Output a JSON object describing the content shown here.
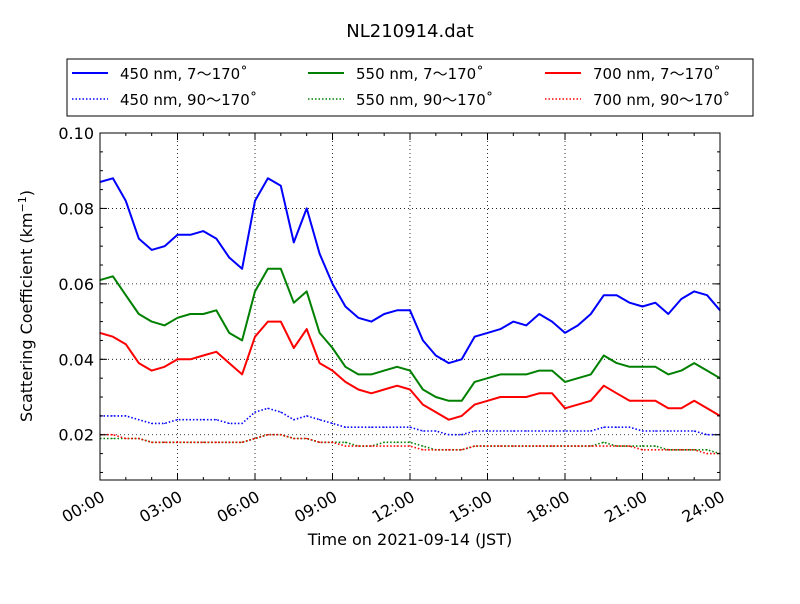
{
  "chart_data": {
    "type": "line",
    "title": "NL210914.dat",
    "xlabel": "Time on 2021-09-14 (JST)",
    "ylabel": "Scattering Coefficient (km",
    "ylabel_sup": "−1",
    "ylabel_tail": ")",
    "xlim": [
      0,
      24
    ],
    "ylim": [
      0.008,
      0.1
    ],
    "x_ticks": [
      {
        "v": 0,
        "label": "00:00"
      },
      {
        "v": 3,
        "label": "03:00"
      },
      {
        "v": 6,
        "label": "06:00"
      },
      {
        "v": 9,
        "label": "09:00"
      },
      {
        "v": 12,
        "label": "12:00"
      },
      {
        "v": 15,
        "label": "15:00"
      },
      {
        "v": 18,
        "label": "18:00"
      },
      {
        "v": 21,
        "label": "21:00"
      },
      {
        "v": 24,
        "label": "24:00"
      }
    ],
    "y_ticks": [
      {
        "v": 0.02,
        "label": "0.02"
      },
      {
        "v": 0.04,
        "label": "0.04"
      },
      {
        "v": 0.06,
        "label": "0.06"
      },
      {
        "v": 0.08,
        "label": "0.08"
      },
      {
        "v": 0.1,
        "label": "0.10"
      }
    ],
    "y_minor_step": 0.005,
    "x_minor_step": 1,
    "grid": true,
    "legend_position": "top",
    "x": [
      0,
      0.5,
      1,
      1.5,
      2,
      2.5,
      3,
      3.5,
      4,
      4.5,
      5,
      5.5,
      6,
      6.5,
      7,
      7.5,
      8,
      8.5,
      9,
      9.5,
      10,
      10.5,
      11,
      11.5,
      12,
      12.5,
      13,
      13.5,
      14,
      14.5,
      15,
      15.5,
      16,
      16.5,
      17,
      17.5,
      18,
      18.5,
      19,
      19.5,
      20,
      20.5,
      21,
      21.5,
      22,
      22.5,
      23,
      23.5,
      24
    ],
    "series": [
      {
        "name": "450 nm, 7～170˚",
        "color": "#0000ff",
        "style": "solid",
        "values": [
          0.087,
          0.088,
          0.082,
          0.072,
          0.069,
          0.07,
          0.073,
          0.073,
          0.074,
          0.072,
          0.067,
          0.064,
          0.082,
          0.088,
          0.086,
          0.071,
          0.08,
          0.068,
          0.06,
          0.054,
          0.051,
          0.05,
          0.052,
          0.053,
          0.053,
          0.045,
          0.041,
          0.039,
          0.04,
          0.046,
          0.047,
          0.048,
          0.05,
          0.049,
          0.052,
          0.05,
          0.047,
          0.049,
          0.052,
          0.057,
          0.057,
          0.055,
          0.054,
          0.055,
          0.052,
          0.056,
          0.058,
          0.057,
          0.053
        ]
      },
      {
        "name": "450 nm, 90～170˚",
        "color": "#0000ff",
        "style": "dotted",
        "values": [
          0.025,
          0.025,
          0.025,
          0.024,
          0.023,
          0.023,
          0.024,
          0.024,
          0.024,
          0.024,
          0.023,
          0.023,
          0.026,
          0.027,
          0.026,
          0.024,
          0.025,
          0.024,
          0.023,
          0.022,
          0.022,
          0.022,
          0.022,
          0.022,
          0.022,
          0.021,
          0.021,
          0.02,
          0.02,
          0.021,
          0.021,
          0.021,
          0.021,
          0.021,
          0.021,
          0.021,
          0.021,
          0.021,
          0.021,
          0.022,
          0.022,
          0.022,
          0.021,
          0.021,
          0.021,
          0.021,
          0.021,
          0.02,
          0.02
        ]
      },
      {
        "name": "550 nm, 7～170˚",
        "color": "#008000",
        "style": "solid",
        "values": [
          0.061,
          0.062,
          0.057,
          0.052,
          0.05,
          0.049,
          0.051,
          0.052,
          0.052,
          0.053,
          0.047,
          0.045,
          0.058,
          0.064,
          0.064,
          0.055,
          0.058,
          0.047,
          0.043,
          0.038,
          0.036,
          0.036,
          0.037,
          0.038,
          0.037,
          0.032,
          0.03,
          0.029,
          0.029,
          0.034,
          0.035,
          0.036,
          0.036,
          0.036,
          0.037,
          0.037,
          0.034,
          0.035,
          0.036,
          0.041,
          0.039,
          0.038,
          0.038,
          0.038,
          0.036,
          0.037,
          0.039,
          0.037,
          0.035
        ]
      },
      {
        "name": "550 nm, 90～170˚",
        "color": "#008000",
        "style": "dotted",
        "values": [
          0.019,
          0.019,
          0.019,
          0.019,
          0.018,
          0.018,
          0.018,
          0.018,
          0.018,
          0.018,
          0.018,
          0.018,
          0.019,
          0.02,
          0.02,
          0.019,
          0.019,
          0.018,
          0.018,
          0.018,
          0.017,
          0.017,
          0.018,
          0.018,
          0.018,
          0.017,
          0.016,
          0.016,
          0.016,
          0.017,
          0.017,
          0.017,
          0.017,
          0.017,
          0.017,
          0.017,
          0.017,
          0.017,
          0.017,
          0.018,
          0.017,
          0.017,
          0.017,
          0.017,
          0.016,
          0.016,
          0.016,
          0.016,
          0.015
        ]
      },
      {
        "name": "700 nm, 7～170˚",
        "color": "#ff0000",
        "style": "solid",
        "values": [
          0.047,
          0.046,
          0.044,
          0.039,
          0.037,
          0.038,
          0.04,
          0.04,
          0.041,
          0.042,
          0.039,
          0.036,
          0.046,
          0.05,
          0.05,
          0.043,
          0.048,
          0.039,
          0.037,
          0.034,
          0.032,
          0.031,
          0.032,
          0.033,
          0.032,
          0.028,
          0.026,
          0.024,
          0.025,
          0.028,
          0.029,
          0.03,
          0.03,
          0.03,
          0.031,
          0.031,
          0.027,
          0.028,
          0.029,
          0.033,
          0.031,
          0.029,
          0.029,
          0.029,
          0.027,
          0.027,
          0.029,
          0.027,
          0.025
        ]
      },
      {
        "name": "700 nm, 90～170˚",
        "color": "#ff0000",
        "style": "dotted",
        "values": [
          0.02,
          0.02,
          0.019,
          0.019,
          0.018,
          0.018,
          0.018,
          0.018,
          0.018,
          0.018,
          0.018,
          0.018,
          0.019,
          0.02,
          0.02,
          0.019,
          0.019,
          0.018,
          0.018,
          0.017,
          0.017,
          0.017,
          0.017,
          0.017,
          0.017,
          0.016,
          0.016,
          0.016,
          0.016,
          0.017,
          0.017,
          0.017,
          0.017,
          0.017,
          0.017,
          0.017,
          0.017,
          0.017,
          0.017,
          0.017,
          0.017,
          0.017,
          0.016,
          0.016,
          0.016,
          0.016,
          0.016,
          0.015,
          0.015
        ]
      }
    ]
  }
}
